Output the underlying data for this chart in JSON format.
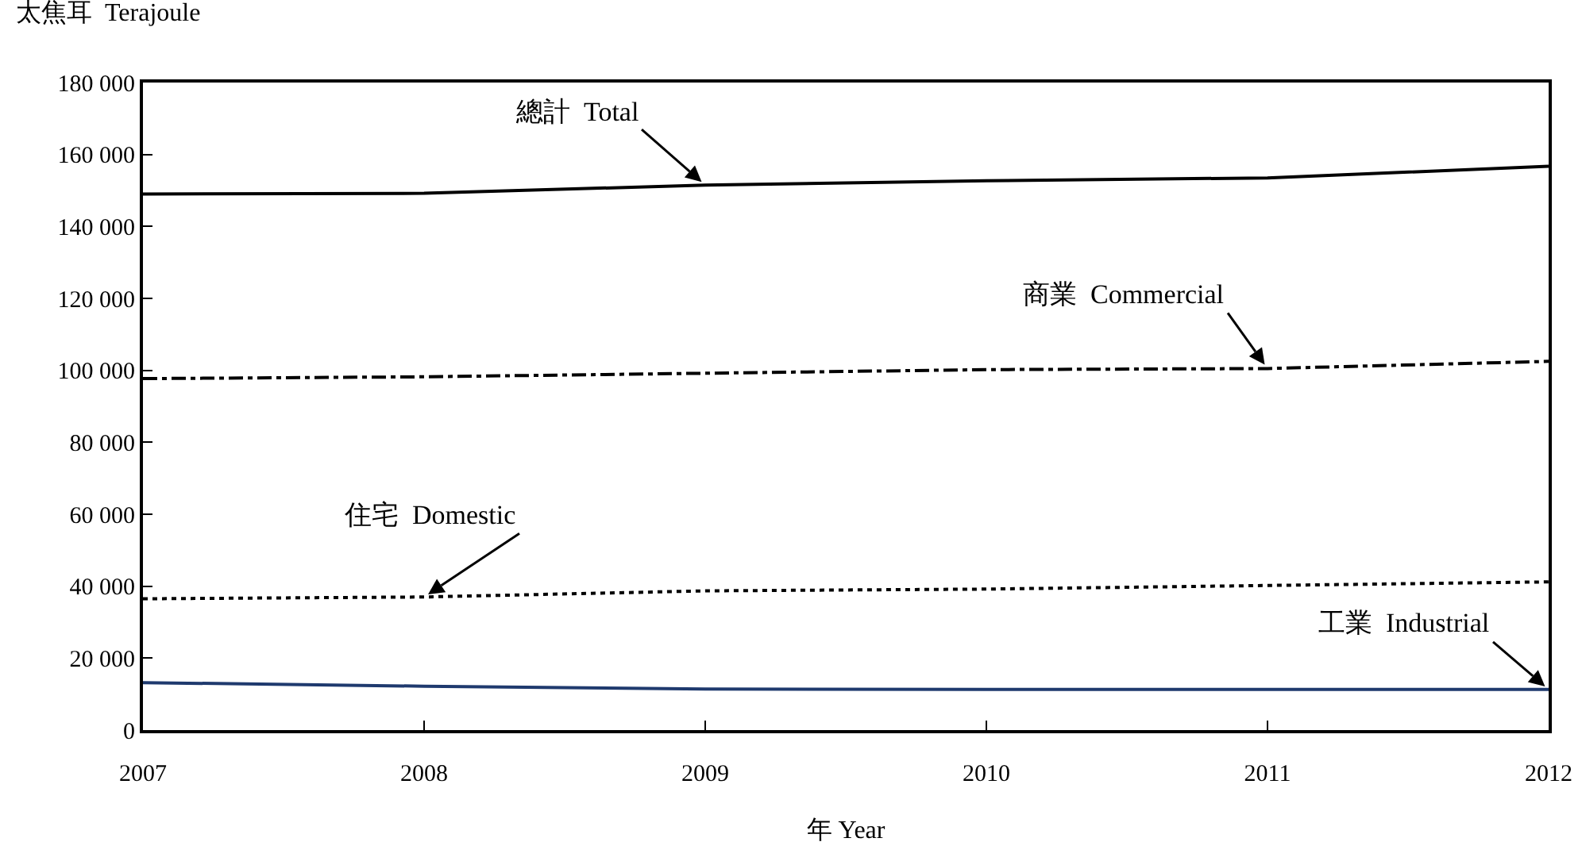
{
  "chart_data": {
    "type": "line",
    "xlabel": "年 Year",
    "ylabel": "太焦耳  Terajoule",
    "x": [
      2007,
      2008,
      2009,
      2010,
      2011,
      2012
    ],
    "series": [
      {
        "name": "總計  Total",
        "color": "#000000",
        "line_style": "solid",
        "values": [
          149000,
          149200,
          151500,
          152700,
          153500,
          156700
        ]
      },
      {
        "name": "商業  Commercial",
        "color": "#000000",
        "line_style": "dashdot",
        "values": [
          97700,
          98200,
          99200,
          100200,
          100500,
          102500
        ]
      },
      {
        "name": "住宅  Domestic",
        "color": "#000000",
        "line_style": "dotted",
        "values": [
          36500,
          37000,
          38700,
          39200,
          40200,
          41200
        ]
      },
      {
        "name": "工業  Industrial",
        "color": "#1f3a6e",
        "line_style": "solid",
        "values": [
          13200,
          12200,
          11400,
          11300,
          11300,
          11300
        ]
      }
    ],
    "xlim": [
      2007,
      2012
    ],
    "xticks": [
      2007,
      2008,
      2009,
      2010,
      2011,
      2012
    ],
    "ylim": [
      0,
      180000
    ],
    "yticks": [
      0,
      {
        "value": 20000,
        "label": "20 000"
      },
      {
        "value": 40000,
        "label": "40 000"
      },
      {
        "value": 60000,
        "label": "60 000"
      },
      {
        "value": 80000,
        "label": "80 000"
      },
      {
        "value": 100000,
        "label": "100 000"
      },
      {
        "value": 120000,
        "label": "120 000"
      },
      {
        "value": 140000,
        "label": "140 000"
      },
      {
        "value": 160000,
        "label": "160 000"
      },
      {
        "value": 180000,
        "label": "180 000"
      }
    ],
    "grid": false,
    "legend": false,
    "marker": "none"
  }
}
